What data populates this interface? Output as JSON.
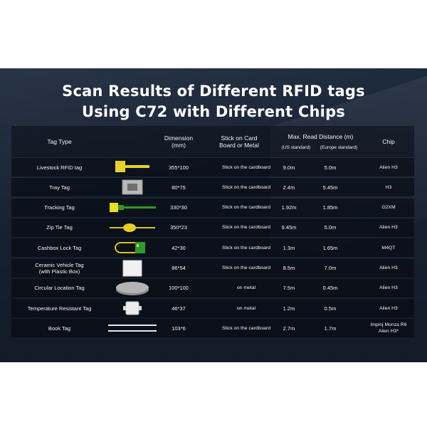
{
  "title": {
    "line1": "Scan Results of Different RFID tags",
    "line2": "Using C72 with Different Chips"
  },
  "headers": {
    "tag_type": "Tag Type",
    "dimension": "Dimension\n(mm)",
    "stick": "Stick on Card\nBoard or Metal",
    "max_read": "Max. Read Distance (m)",
    "us_standard": "(US standard)",
    "eu_standard": "(Europe standard)",
    "chip": "Chip"
  },
  "rows": [
    {
      "tag": "Livestock RFID tag",
      "dimension": "355*100",
      "stick": "Stick on the cardboard",
      "us": "9.0m",
      "eu": "5.0m",
      "chip": "Alien H3",
      "icon": "livestock-tag-icon"
    },
    {
      "tag": "Tray Tag",
      "dimension": "80*75",
      "stick": "Stick on the cardboard",
      "us": "2.4m",
      "eu": "5.45m",
      "chip": "H3",
      "icon": "tray-tag-icon"
    },
    {
      "tag": "Tracking Tag",
      "dimension": "330*30",
      "stick": "Stick on the cardboard",
      "us": "1.92m",
      "eu": "1.85m",
      "chip": "G2XM",
      "icon": "tracking-tag-icon"
    },
    {
      "tag": "Zip Tie Tag",
      "dimension": "350*23",
      "stick": "Stick on the cardboard",
      "us": "9.45m",
      "eu": "5.0m",
      "chip": "Alien H3",
      "icon": "zip-tie-tag-icon"
    },
    {
      "tag": "Cashbox Lock Tag",
      "dimension": "42*30",
      "stick": "Stick on the cardboard",
      "us": "1.3m",
      "eu": "1.65m",
      "chip": "M4QT",
      "icon": "cashbox-lock-tag-icon"
    },
    {
      "tag": "Ceramic Vehicle Tag\n(with Plastic Box)",
      "dimension": "86*54",
      "stick": "Stick on the cardboard",
      "us": "8.5m",
      "eu": "7.0m",
      "chip": "Alien H3",
      "icon": "ceramic-vehicle-tag-icon"
    },
    {
      "tag": "Circular Location Tag",
      "dimension": "100*100",
      "stick": "on metal",
      "us": "7.5m",
      "eu": "0.45m",
      "chip": "Alien H3",
      "icon": "circular-location-tag-icon"
    },
    {
      "tag": "Temperature Resistant Tag",
      "dimension": "46*37",
      "stick": "on metal",
      "us": "1.2m",
      "eu": "0.5m",
      "chip": "Alien H3",
      "icon": "temperature-resistant-tag-icon"
    },
    {
      "tag": "Book Tag",
      "dimension": "103*6",
      "stick": "Stick on the cardboard",
      "us": "2.7m",
      "eu": "1.7m",
      "chip": "Impinj Monza R6\nAlien H3*",
      "icon": "book-tag-icon"
    }
  ]
}
